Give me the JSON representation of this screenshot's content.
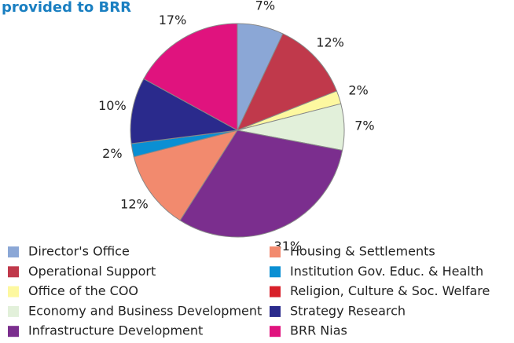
{
  "chart_data": {
    "type": "pie",
    "title": "provided to BRR",
    "categories": [
      "Director's Office",
      "Operational Support",
      "Office of the COO",
      "Economy and Business Development",
      "Infrastructure Development",
      "Housing & Settlements",
      "Institution Gov. Educ. & Health",
      "Religion, Culture & Soc. Welfare",
      "Strategy Research",
      "BRR Nias"
    ],
    "values": [
      7,
      12,
      2,
      7,
      31,
      12,
      2,
      0,
      10,
      17
    ],
    "value_labels": [
      "7%",
      "12%",
      "2%",
      "7%",
      "31%",
      "12%",
      "2%",
      null,
      "10%",
      "17%"
    ],
    "colors": [
      "#8ba7d6",
      "#c0394b",
      "#fdf8a0",
      "#e2f0da",
      "#7b2e8e",
      "#f28a6e",
      "#0a8fd3",
      "#d8202a",
      "#2a2a8c",
      "#e0137e"
    ],
    "legend": "bottom"
  }
}
